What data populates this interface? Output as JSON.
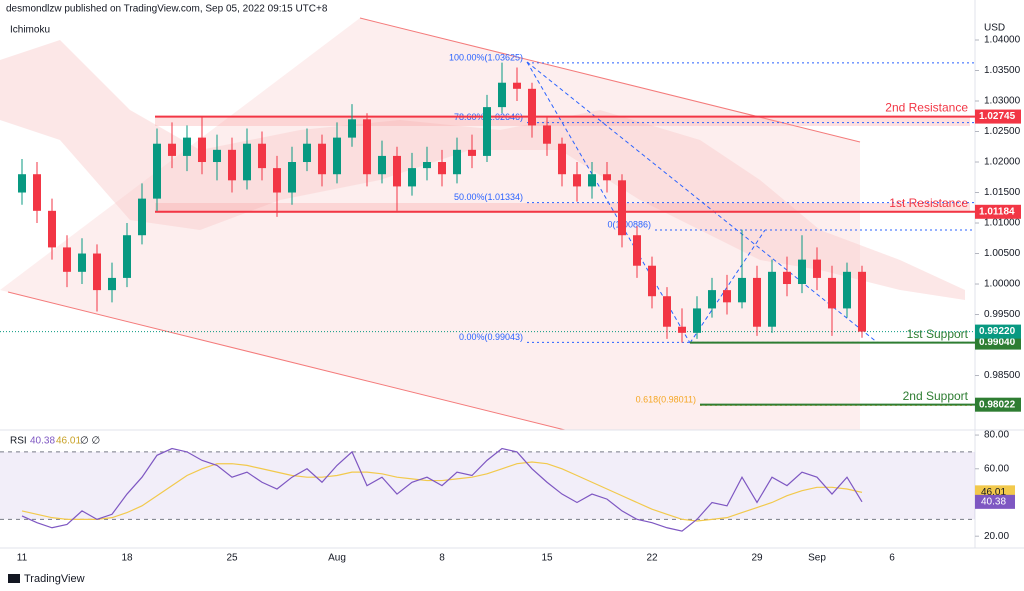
{
  "header": {
    "publisher": "desmondlzw published on TradingView.com, Sep 05, 2022 09:15 UTC+8",
    "indicator": "Ichimoku",
    "currency": "USD",
    "footer": "TradingView"
  },
  "chart_data": {
    "type": "candlestick",
    "categories": [
      "11",
      null,
      null,
      null,
      null,
      null,
      null,
      "18",
      null,
      null,
      null,
      null,
      null,
      null,
      "25",
      null,
      null,
      null,
      null,
      null,
      null,
      "Aug",
      null,
      null,
      null,
      null,
      null,
      null,
      "8",
      null,
      null,
      null,
      null,
      null,
      null,
      "15",
      null,
      null,
      null,
      null,
      null,
      null,
      "22",
      null,
      null,
      null,
      null,
      null,
      null,
      "29",
      null,
      null,
      null,
      "Sep",
      null,
      null,
      null,
      null,
      "6"
    ],
    "open": [
      1.015,
      1.018,
      1.012,
      1.006,
      1.002,
      1.005,
      0.999,
      1.001,
      1.008,
      1.014,
      1.023,
      1.021,
      1.024,
      1.02,
      1.022,
      1.017,
      1.023,
      1.019,
      1.015,
      1.02,
      1.023,
      1.018,
      1.024,
      1.027,
      1.018,
      1.021,
      1.016,
      1.019,
      1.02,
      1.018,
      1.022,
      1.021,
      1.029,
      1.033,
      1.032,
      1.026,
      1.023,
      1.018,
      1.016,
      1.018,
      1.017,
      1.008,
      1.003,
      0.998,
      0.993,
      0.992,
      0.996,
      0.999,
      0.997,
      1.001,
      0.993,
      1.002,
      1.0,
      1.004,
      1.001,
      0.996,
      1.002,
      null,
      null
    ],
    "high": [
      1.0205,
      1.02,
      1.014,
      1.008,
      1.0075,
      1.0065,
      1.0035,
      1.01,
      1.0165,
      1.0255,
      1.0265,
      1.026,
      1.0275,
      1.0245,
      1.024,
      1.0255,
      1.025,
      1.021,
      1.0225,
      1.0255,
      1.0245,
      1.0265,
      1.0295,
      1.028,
      1.0235,
      1.0225,
      1.0215,
      1.0225,
      1.022,
      1.024,
      1.0245,
      1.031,
      1.0363,
      1.0355,
      1.033,
      1.0275,
      1.024,
      1.02,
      1.02,
      1.02,
      1.018,
      1.0095,
      1.0045,
      0.9995,
      0.996,
      0.998,
      1.001,
      1.0015,
      1.0089,
      1.003,
      1.004,
      1.0045,
      1.008,
      1.006,
      1.003,
      1.0035,
      1.003,
      null,
      null
    ],
    "low": [
      1.013,
      1.01,
      1.004,
      0.9995,
      1.0,
      0.9955,
      0.997,
      0.9995,
      1.0065,
      1.012,
      1.019,
      1.0185,
      1.018,
      1.017,
      1.015,
      1.0155,
      1.017,
      1.011,
      1.013,
      1.0185,
      1.016,
      1.0165,
      1.0225,
      1.016,
      1.0165,
      1.012,
      1.0145,
      1.017,
      1.016,
      1.0165,
      1.019,
      1.02,
      1.028,
      1.03,
      1.024,
      1.021,
      1.016,
      1.0135,
      1.014,
      1.015,
      1.006,
      1.001,
      0.996,
      0.991,
      0.9904,
      0.991,
      0.9945,
      0.995,
      0.996,
      0.9915,
      0.992,
      0.998,
      0.9985,
      0.999,
      0.9915,
      0.9945,
      0.9912,
      null,
      null
    ],
    "close": [
      1.018,
      1.012,
      1.006,
      1.002,
      1.005,
      0.999,
      1.001,
      1.008,
      1.014,
      1.023,
      1.021,
      1.024,
      1.02,
      1.022,
      1.017,
      1.023,
      1.019,
      1.015,
      1.02,
      1.023,
      1.018,
      1.024,
      1.027,
      1.018,
      1.021,
      1.016,
      1.019,
      1.02,
      1.018,
      1.022,
      1.021,
      1.029,
      1.033,
      1.032,
      1.026,
      1.023,
      1.018,
      1.016,
      1.018,
      1.017,
      1.008,
      1.003,
      0.998,
      0.993,
      0.992,
      0.996,
      0.999,
      0.997,
      1.001,
      0.993,
      1.002,
      1.0,
      1.004,
      1.001,
      0.996,
      1.002,
      0.9922,
      null,
      null
    ],
    "up_color": "#089981",
    "down_color": "#f23645",
    "ylim": [
      0.97607,
      1.0441
    ],
    "yticks": [
      {
        "value": 1.04,
        "label": "1.04000"
      },
      {
        "value": 1.035,
        "label": "1.03500"
      },
      {
        "value": 1.03,
        "label": "1.03000"
      },
      {
        "value": 1.025,
        "label": "1.02500"
      },
      {
        "value": 1.02,
        "label": "1.02000"
      },
      {
        "value": 1.015,
        "label": "1.01500"
      },
      {
        "value": 1.01,
        "label": "1.01000"
      },
      {
        "value": 1.005,
        "label": "1.00500"
      },
      {
        "value": 1.0,
        "label": "1.00000"
      },
      {
        "value": 0.995,
        "label": "0.99500"
      },
      {
        "value": 0.985,
        "label": "0.98500"
      }
    ],
    "levels": [
      {
        "name": "2nd Resistance",
        "value": 1.02745,
        "label": "1.02745",
        "color": "#f23645"
      },
      {
        "name": "1st Resistance",
        "value": 1.01184,
        "label": "1.01184",
        "color": "#f23645"
      },
      {
        "name": "1st Support",
        "value": 0.9904,
        "label": "0.99040",
        "color": "#2e7d32"
      },
      {
        "name": "2nd Support",
        "value": 0.98022,
        "label": "0.98022",
        "color": "#2e7d32"
      }
    ],
    "current_price": {
      "value": 0.9922,
      "label": "0.99220",
      "color": "#089981"
    },
    "fib_labels": [
      {
        "label": "100.00%(1.03625)",
        "value": 1.03625,
        "color": "#2962ff"
      },
      {
        "label": "78.60%(1.02646)",
        "value": 1.02646,
        "color": "#2962ff"
      },
      {
        "label": "50.00%(1.01334)",
        "value": 1.01334,
        "color": "#2962ff"
      },
      {
        "label": "0(1.00886)",
        "value": 1.00886,
        "color": "#2962ff"
      },
      {
        "label": "0.00%(0.99043)",
        "value": 0.99043,
        "color": "#2962ff"
      },
      {
        "label": "0.618(0.98011)",
        "value": 0.98011,
        "color": "#f5a623"
      }
    ],
    "rsi": {
      "title": "RSI",
      "extras": "∅ ∅",
      "color": "#7e57c2",
      "ma_color": "#f2c94c",
      "values": [
        32,
        28,
        25,
        27,
        35,
        30,
        33,
        45,
        55,
        68,
        72,
        70,
        65,
        62,
        55,
        58,
        52,
        48,
        55,
        60,
        52,
        62,
        70,
        50,
        55,
        45,
        52,
        55,
        50,
        58,
        56,
        65,
        72,
        70,
        60,
        52,
        45,
        40,
        45,
        42,
        35,
        30,
        28,
        25,
        23,
        30,
        40,
        38,
        55,
        40,
        55,
        50,
        58,
        55,
        45,
        55,
        40.38,
        null,
        null
      ],
      "ma": [
        35,
        33,
        31,
        30,
        30,
        30,
        31,
        34,
        38,
        44,
        50,
        56,
        60,
        63,
        63,
        62,
        60,
        58,
        56,
        55,
        55,
        56,
        58,
        58,
        57,
        55,
        54,
        53,
        53,
        54,
        55,
        57,
        60,
        63,
        64,
        63,
        60,
        56,
        52,
        48,
        44,
        40,
        36,
        33,
        30,
        29,
        30,
        31,
        34,
        37,
        40,
        44,
        47,
        49,
        49,
        48,
        46.01,
        null,
        null
      ],
      "value_label": "40.38",
      "ma_label": "46.01",
      "band": [
        30,
        70
      ],
      "ylim": [
        13,
        83
      ],
      "yticks": [
        {
          "value": 80,
          "label": "80.00"
        },
        {
          "value": 60,
          "label": "60.00"
        },
        {
          "value": 20,
          "label": "20.00"
        }
      ]
    }
  }
}
